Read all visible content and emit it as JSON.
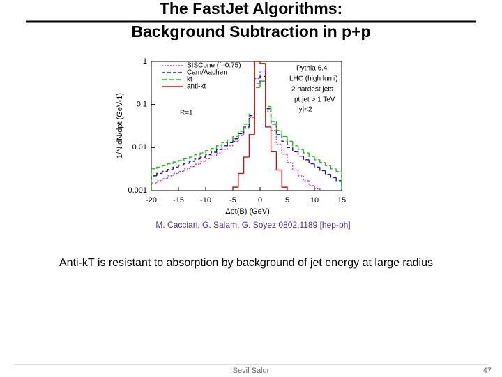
{
  "slide": {
    "title_line1": "The FastJet Algorithms:",
    "title_line2": "Background Subtraction in p+p",
    "citation": "M. Cacciari, G. Salam, G. Soyez  0802.1189 [hep-ph]",
    "statement": "Anti-kT is resistant to absorption by background of jet energy at large radius",
    "footer_author": "Sevil Salur",
    "page_number": "47"
  },
  "chart_data": {
    "type": "histogram",
    "x_label": "Δpt(B) (GeV)",
    "y_label": "1/N dN/dpt (GeV-1)",
    "annotations": [
      "Pythia 6.4",
      "LHC (high lumi)",
      "2 hardest jets",
      "pt,jet > 1 TeV",
      "|y|<2",
      "R=1"
    ],
    "bins": [
      -20,
      -19,
      -18,
      -17,
      -16,
      -15,
      -14,
      -13,
      -12,
      -11,
      -10,
      -9,
      -8,
      -7,
      -6,
      -5,
      -4,
      -3,
      -2,
      -1,
      0,
      1,
      2,
      3,
      4,
      5,
      6,
      7,
      8,
      9,
      10,
      11,
      12,
      13,
      14,
      15
    ],
    "series": [
      {
        "name": "SISCone (f=0.75)",
        "color": "#cc33cc",
        "dash": "2 2",
        "values": [
          0.0015,
          0.0017,
          0.0019,
          0.0022,
          0.0025,
          0.0028,
          0.0032,
          0.0036,
          0.0041,
          0.0047,
          0.0055,
          0.0064,
          0.0075,
          0.009,
          0.011,
          0.014,
          0.019,
          0.028,
          0.05,
          0.4,
          0.6,
          0.07,
          0.025,
          0.012,
          0.007,
          0.0045,
          0.003,
          0.0022,
          0.0017,
          0.0013,
          0.0011,
          null,
          null,
          null,
          null
        ]
      },
      {
        "name": "Cam/Aachen",
        "color": "#1a1a8c",
        "dash": "5 3",
        "values": [
          0.0022,
          0.0025,
          0.0028,
          0.0031,
          0.0035,
          0.0039,
          0.0043,
          0.0048,
          0.0054,
          0.006,
          0.0068,
          0.0078,
          0.009,
          0.011,
          0.013,
          0.016,
          0.021,
          0.03,
          0.055,
          0.3,
          0.45,
          0.08,
          0.035,
          0.02,
          0.014,
          0.01,
          0.008,
          0.0063,
          0.0052,
          0.0042,
          0.0035,
          0.0029,
          0.0024,
          0.002,
          0.0017
        ]
      },
      {
        "name": "kt",
        "color": "#22bb22",
        "dash": "7 3",
        "values": [
          0.0032,
          0.0035,
          0.0038,
          0.0042,
          0.0046,
          0.005,
          0.0055,
          0.006,
          0.0068,
          0.0075,
          0.0085,
          0.0095,
          0.011,
          0.013,
          0.015,
          0.018,
          0.024,
          0.035,
          0.06,
          0.25,
          0.35,
          0.09,
          0.04,
          0.025,
          0.018,
          0.014,
          0.011,
          0.009,
          0.0075,
          0.0062,
          0.0052,
          0.0045,
          0.0038,
          0.0032,
          0.0028
        ]
      },
      {
        "name": "anti-kt",
        "color": "#cc1111",
        "dash": "none",
        "values": [
          null,
          null,
          null,
          null,
          null,
          null,
          null,
          null,
          null,
          null,
          null,
          null,
          null,
          null,
          null,
          0.0012,
          0.0025,
          0.006,
          0.02,
          1,
          0.9,
          0.03,
          0.008,
          0.003,
          0.0012,
          null,
          null,
          null,
          null,
          null,
          null,
          null,
          null,
          null,
          null
        ]
      }
    ],
    "xlim": [
      -20,
      15
    ],
    "xticks": [
      -20,
      -15,
      -10,
      -5,
      0,
      5,
      10,
      15
    ],
    "ylim": [
      0.001,
      1
    ],
    "yticks": [
      1,
      0.1,
      0.01,
      0.001
    ],
    "log_y": true
  }
}
